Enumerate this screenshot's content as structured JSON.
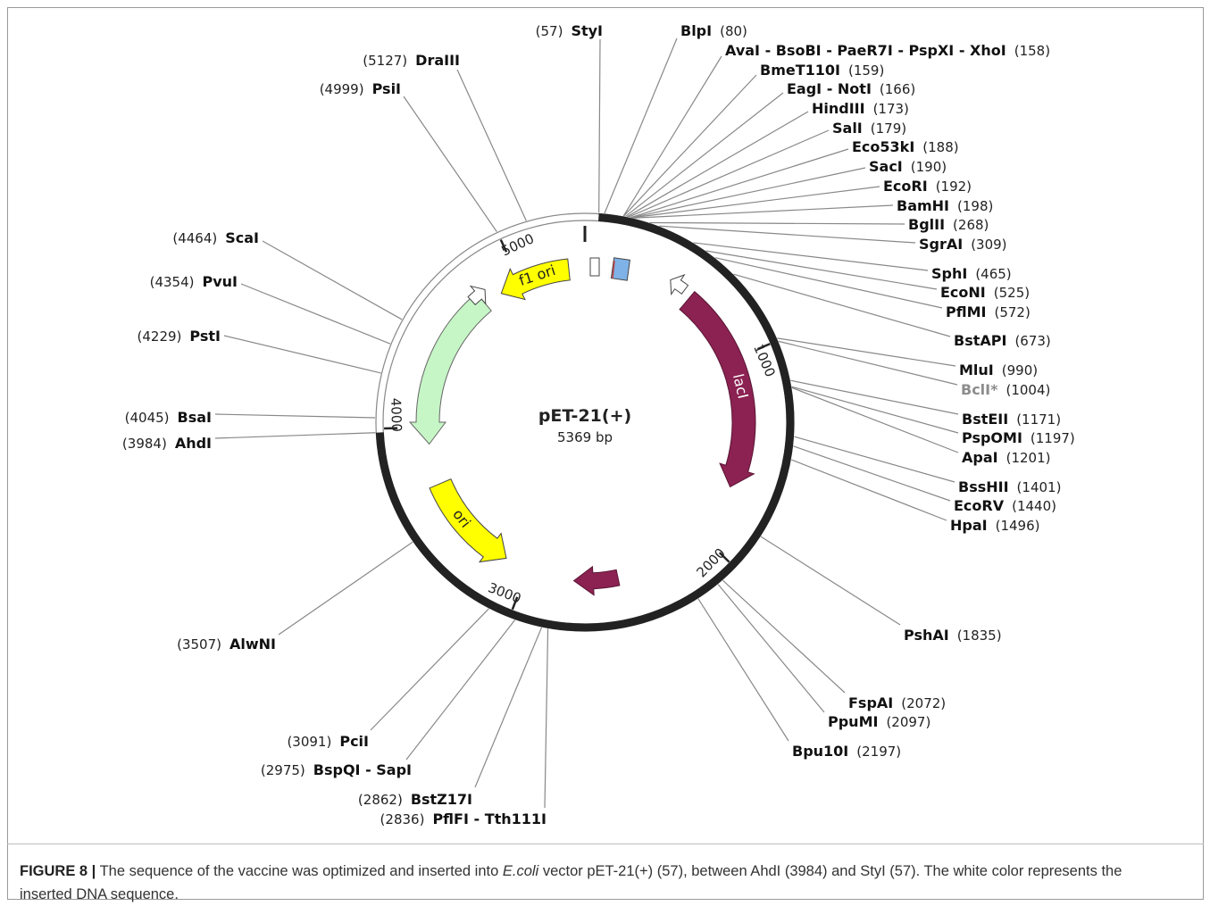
{
  "plasmid": {
    "name": "pET-21(+)",
    "size_label": "5369 bp",
    "length": 5369,
    "ring_ticks": [
      1000,
      2000,
      3000,
      4000,
      5000
    ],
    "features": [
      {
        "label": "f1 ori"
      },
      {
        "label": "lacI"
      },
      {
        "label": "ori"
      }
    ],
    "sites": [
      {
        "name": "StyI",
        "position": 57,
        "position_label": "(57)"
      },
      {
        "name": "BlpI",
        "position": 80,
        "position_label": "(80)"
      },
      {
        "name": "AvaI - BsoBI - PaeR7I - PspXI - XhoI",
        "position": 158,
        "position_label": "(158)"
      },
      {
        "name": "BmeT110I",
        "position": 159,
        "position_label": "(159)"
      },
      {
        "name": "EagI - NotI",
        "position": 166,
        "position_label": "(166)"
      },
      {
        "name": "HindIII",
        "position": 173,
        "position_label": "(173)"
      },
      {
        "name": "SalI",
        "position": 179,
        "position_label": "(179)"
      },
      {
        "name": "Eco53kI",
        "position": 188,
        "position_label": "(188)"
      },
      {
        "name": "SacI",
        "position": 190,
        "position_label": "(190)"
      },
      {
        "name": "EcoRI",
        "position": 192,
        "position_label": "(192)"
      },
      {
        "name": "BamHI",
        "position": 198,
        "position_label": "(198)"
      },
      {
        "name": "BglII",
        "position": 268,
        "position_label": "(268)"
      },
      {
        "name": "SgrAI",
        "position": 309,
        "position_label": "(309)"
      },
      {
        "name": "SphI",
        "position": 465,
        "position_label": "(465)"
      },
      {
        "name": "EcoNI",
        "position": 525,
        "position_label": "(525)"
      },
      {
        "name": "PflMI",
        "position": 572,
        "position_label": "(572)"
      },
      {
        "name": "BstAPI",
        "position": 673,
        "position_label": "(673)"
      },
      {
        "name": "MluI",
        "position": 990,
        "position_label": "(990)"
      },
      {
        "name": "BclI*",
        "position": 1004,
        "position_label": "(1004)",
        "color": "#8c8c8c"
      },
      {
        "name": "BstEII",
        "position": 1171,
        "position_label": "(1171)"
      },
      {
        "name": "PspOMI",
        "position": 1197,
        "position_label": "(1197)"
      },
      {
        "name": "ApaI",
        "position": 1201,
        "position_label": "(1201)"
      },
      {
        "name": "BssHII",
        "position": 1401,
        "position_label": "(1401)"
      },
      {
        "name": "EcoRV",
        "position": 1440,
        "position_label": "(1440)"
      },
      {
        "name": "HpaI",
        "position": 1496,
        "position_label": "(1496)"
      },
      {
        "name": "PshAI",
        "position": 1835,
        "position_label": "(1835)"
      },
      {
        "name": "FspAI",
        "position": 2072,
        "position_label": "(2072)"
      },
      {
        "name": "PpuMI",
        "position": 2097,
        "position_label": "(2097)"
      },
      {
        "name": "Bpu10I",
        "position": 2197,
        "position_label": "(2197)"
      },
      {
        "name": "PflFI - Tth111I",
        "position": 2836,
        "position_label": "(2836)"
      },
      {
        "name": "BstZ17I",
        "position": 2862,
        "position_label": "(2862)"
      },
      {
        "name": "BspQI - SapI",
        "position": 2975,
        "position_label": "(2975)"
      },
      {
        "name": "PciI",
        "position": 3091,
        "position_label": "(3091)"
      },
      {
        "name": "AlwNI",
        "position": 3507,
        "position_label": "(3507)"
      },
      {
        "name": "AhdI",
        "position": 3984,
        "position_label": "(3984)"
      },
      {
        "name": "BsaI",
        "position": 4045,
        "position_label": "(4045)"
      },
      {
        "name": "PstI",
        "position": 4229,
        "position_label": "(4229)"
      },
      {
        "name": "PvuI",
        "position": 4354,
        "position_label": "(4354)"
      },
      {
        "name": "ScaI",
        "position": 4464,
        "position_label": "(4464)"
      },
      {
        "name": "PsiI",
        "position": 4999,
        "position_label": "(4999)"
      },
      {
        "name": "DraIII",
        "position": 5127,
        "position_label": "(5127)"
      }
    ]
  },
  "caption": {
    "label": "FIGURE 8 |",
    "text_before": "The sequence of the vaccine was optimized and inserted into ",
    "italic": "E.coli",
    "text_after": " vector pET-21(+) (57), between AhdI (3984) and StyI (57). The white color represents the inserted DNA sequence."
  }
}
